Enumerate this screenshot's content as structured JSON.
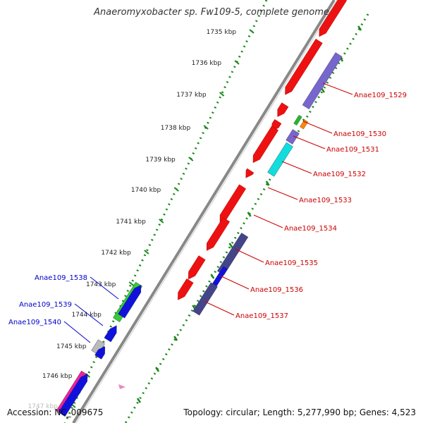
{
  "title": "Anaeromyxobacter sp. Fw109-5, complete genome",
  "footer": {
    "accession": "Accession: NC_009675",
    "topology": "Topology: circular; Length: 5,277,990 bp; Genes: 4,523"
  },
  "colors": {
    "forward_strand": "#ee1111",
    "reverse_strand": "#1111dd",
    "backbone": "#888888",
    "tick": "#1a8a1a",
    "label_forward": "#cc0000",
    "label_reverse": "#0000cc"
  },
  "scale_ticks": [
    "1735 kbp",
    "1736 kbp",
    "1737 kbp",
    "1738 kbp",
    "1739 kbp",
    "1740 kbp",
    "1741 kbp",
    "1742 kbp",
    "1743 kbp",
    "1744 kbp",
    "1745 kbp",
    "1746 kbp",
    "1747 kbp"
  ],
  "gene_labels": [
    {
      "text": "Anae109_1529",
      "side": "right"
    },
    {
      "text": "Anae109_1530",
      "side": "right"
    },
    {
      "text": "Anae109_1531",
      "side": "right"
    },
    {
      "text": "Anae109_1532",
      "side": "right"
    },
    {
      "text": "Anae109_1533",
      "side": "right"
    },
    {
      "text": "Anae109_1534",
      "side": "right"
    },
    {
      "text": "Anae109_1535",
      "side": "right"
    },
    {
      "text": "Anae109_1536",
      "side": "right"
    },
    {
      "text": "Anae109_1537",
      "side": "right"
    },
    {
      "text": "Anae109_1538",
      "side": "left"
    },
    {
      "text": "Anae109_1539",
      "side": "left"
    },
    {
      "text": "Anae109_1540",
      "side": "left"
    }
  ]
}
